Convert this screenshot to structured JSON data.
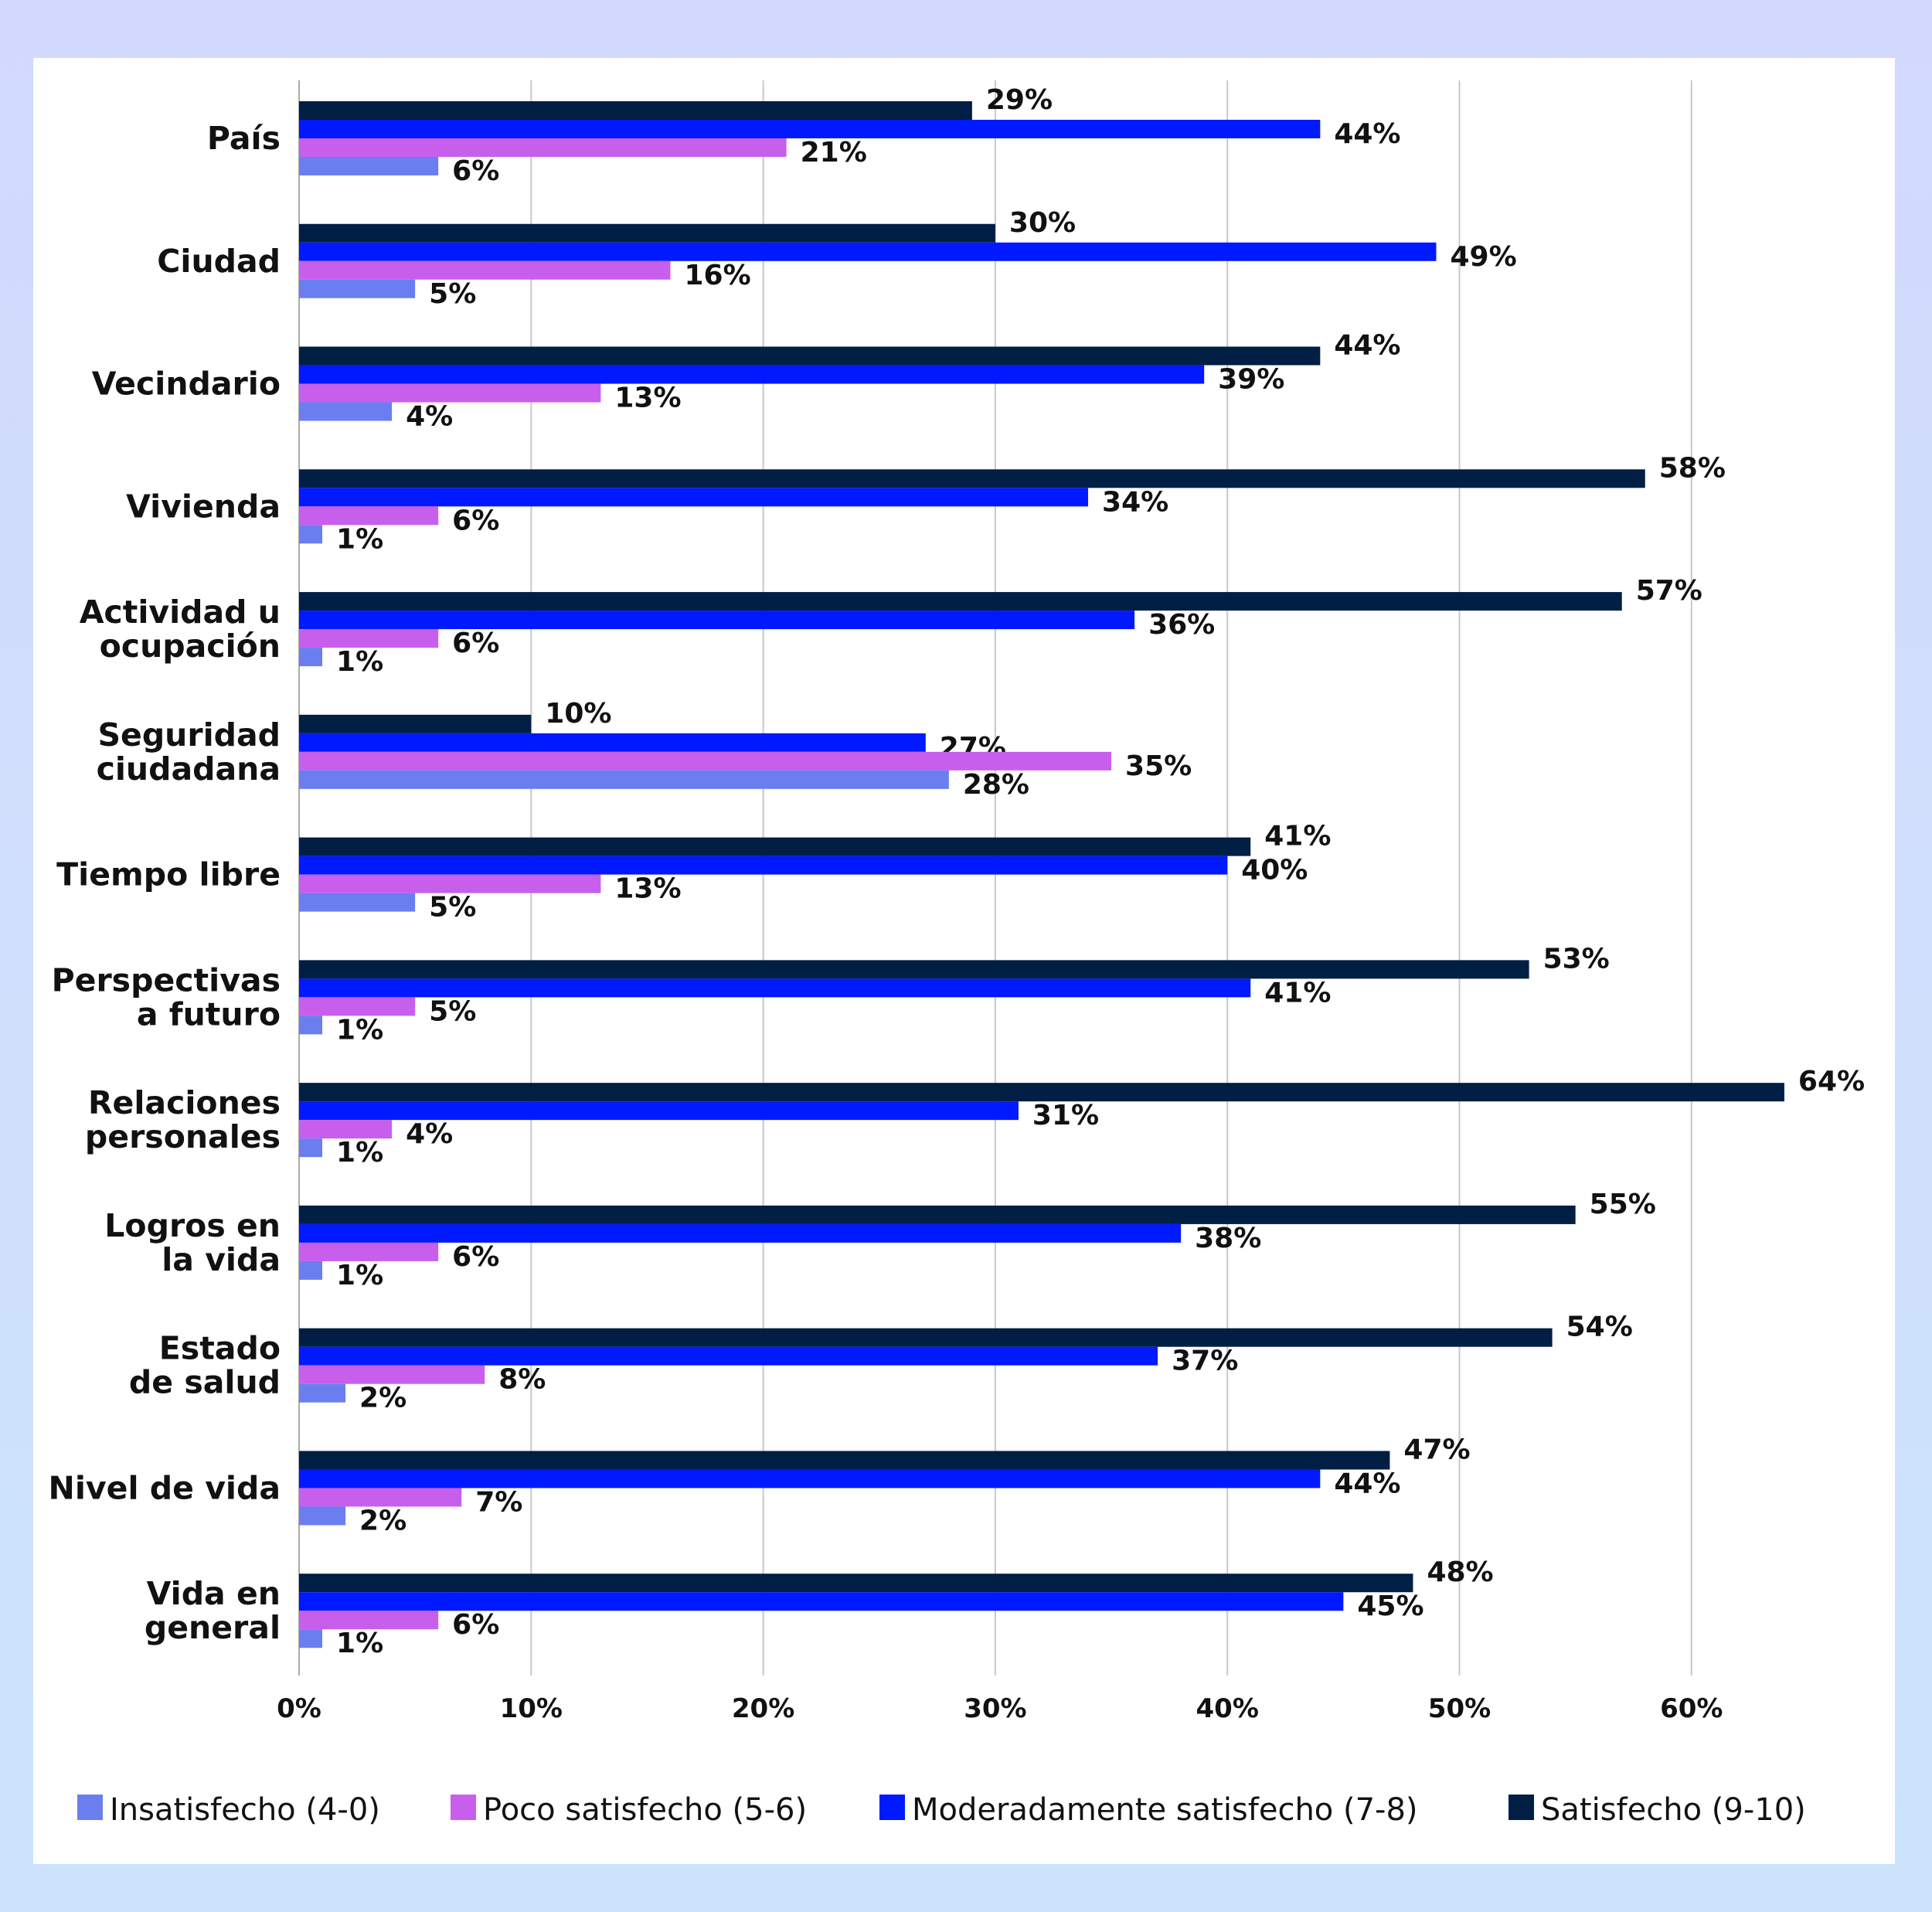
{
  "chart_data": {
    "type": "bar",
    "orientation": "horizontal",
    "categories": [
      [
        "País"
      ],
      [
        "Ciudad"
      ],
      [
        "Vecindario"
      ],
      [
        "Vivienda"
      ],
      [
        "Actividad u",
        "ocupación"
      ],
      [
        "Seguridad",
        "ciudadana"
      ],
      [
        "Tiempo libre"
      ],
      [
        "Perspectivas",
        "a futuro"
      ],
      [
        "Relaciones",
        "personales"
      ],
      [
        "Logros en",
        "la vida"
      ],
      [
        "Estado",
        "de salud"
      ],
      [
        "Nivel de vida"
      ],
      [
        "Vida en",
        "general"
      ]
    ],
    "series": [
      {
        "name": "Satisfecho (9-10)",
        "color": "#011e44",
        "values": [
          29,
          30,
          44,
          58,
          57,
          10,
          41,
          53,
          64,
          55,
          54,
          47,
          48
        ]
      },
      {
        "name": "Moderadamente satisfecho (7-8)",
        "color": "#0019ff",
        "values": [
          44,
          49,
          39,
          34,
          36,
          27,
          40,
          41,
          31,
          38,
          37,
          44,
          45
        ]
      },
      {
        "name": "Poco satisfecho (5-6)",
        "color": "#c75fec",
        "values": [
          21,
          16,
          13,
          6,
          6,
          35,
          13,
          5,
          4,
          6,
          8,
          7,
          6
        ]
      },
      {
        "name": "Insatisfecho (4-0)",
        "color": "#6b7ef0",
        "values": [
          6,
          5,
          4,
          1,
          1,
          28,
          5,
          1,
          1,
          1,
          2,
          2,
          1
        ]
      }
    ],
    "legend_order": [
      3,
      2,
      1,
      0
    ],
    "xlim": [
      0,
      65
    ],
    "xticks": [
      "0%",
      "10%",
      "20%",
      "30%",
      "40%",
      "50%",
      "60%"
    ],
    "value_suffix": "%",
    "grid": "vertical",
    "legend_position": "bottom"
  }
}
